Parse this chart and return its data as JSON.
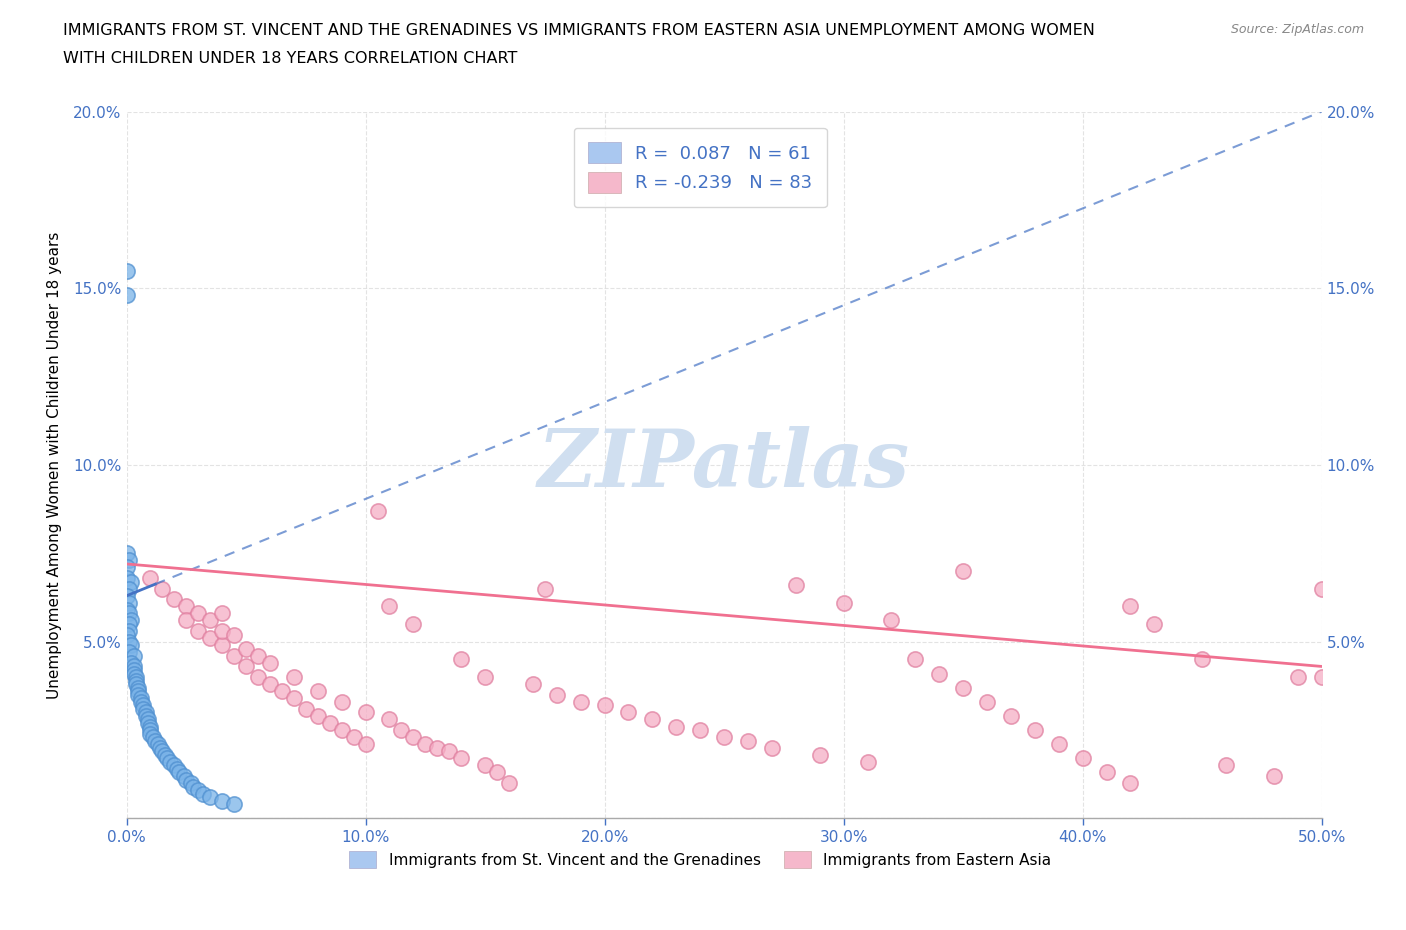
{
  "title_line1": "IMMIGRANTS FROM ST. VINCENT AND THE GRENADINES VS IMMIGRANTS FROM EASTERN ASIA UNEMPLOYMENT AMONG WOMEN",
  "title_line2": "WITH CHILDREN UNDER 18 YEARS CORRELATION CHART",
  "source": "Source: ZipAtlas.com",
  "ylabel": "Unemployment Among Women with Children Under 18 years",
  "xlim": [
    0.0,
    0.5
  ],
  "ylim": [
    0.0,
    0.2
  ],
  "xticks": [
    0.0,
    0.1,
    0.2,
    0.3,
    0.4,
    0.5
  ],
  "yticks": [
    0.0,
    0.05,
    0.1,
    0.15,
    0.2
  ],
  "legend1_label": "R =  0.087   N = 61",
  "legend2_label": "R = -0.239   N = 83",
  "legend1_color": "#aac8f0",
  "legend2_color": "#f5b8cb",
  "trendline1_color": "#4472c4",
  "trendline2_color": "#f07090",
  "scatter1_facecolor": "#7ab3e8",
  "scatter1_edgecolor": "#5090d0",
  "scatter2_facecolor": "#f5aec5",
  "scatter2_edgecolor": "#e080a0",
  "watermark": "ZIPatlas",
  "watermark_color": "#d0dff0",
  "background_color": "#ffffff",
  "grid_color": "#d8d8d8",
  "tick_color": "#4472c4",
  "label_color": "#4472c4",
  "bottom_legend1_label": "Immigrants from St. Vincent and the Grenadines",
  "bottom_legend2_label": "Immigrants from Eastern Asia",
  "trendline1_x0": 0.0,
  "trendline1_y0": 0.063,
  "trendline1_x1": 0.5,
  "trendline1_y1": 0.2,
  "trendline2_x0": 0.0,
  "trendline2_y0": 0.072,
  "trendline2_x1": 0.5,
  "trendline2_y1": 0.043,
  "sv_x": [
    0.0,
    0.0,
    0.0,
    0.001,
    0.0,
    0.0,
    0.002,
    0.001,
    0.0,
    0.001,
    0.0,
    0.001,
    0.002,
    0.001,
    0.001,
    0.0,
    0.001,
    0.002,
    0.001,
    0.003,
    0.002,
    0.003,
    0.003,
    0.003,
    0.004,
    0.004,
    0.004,
    0.005,
    0.005,
    0.005,
    0.006,
    0.006,
    0.007,
    0.007,
    0.008,
    0.008,
    0.009,
    0.009,
    0.01,
    0.01,
    0.01,
    0.011,
    0.012,
    0.013,
    0.014,
    0.015,
    0.016,
    0.017,
    0.018,
    0.02,
    0.021,
    0.022,
    0.024,
    0.025,
    0.027,
    0.028,
    0.03,
    0.032,
    0.035,
    0.04,
    0.045
  ],
  "sv_y": [
    0.155,
    0.148,
    0.075,
    0.073,
    0.071,
    0.068,
    0.067,
    0.065,
    0.063,
    0.061,
    0.059,
    0.058,
    0.056,
    0.055,
    0.053,
    0.052,
    0.05,
    0.049,
    0.047,
    0.046,
    0.044,
    0.043,
    0.042,
    0.041,
    0.04,
    0.039,
    0.038,
    0.037,
    0.036,
    0.035,
    0.034,
    0.033,
    0.032,
    0.031,
    0.03,
    0.029,
    0.028,
    0.027,
    0.026,
    0.025,
    0.024,
    0.023,
    0.022,
    0.021,
    0.02,
    0.019,
    0.018,
    0.017,
    0.016,
    0.015,
    0.014,
    0.013,
    0.012,
    0.011,
    0.01,
    0.009,
    0.008,
    0.007,
    0.006,
    0.005,
    0.004
  ],
  "ea_x": [
    0.01,
    0.015,
    0.02,
    0.025,
    0.025,
    0.03,
    0.03,
    0.035,
    0.035,
    0.04,
    0.04,
    0.04,
    0.045,
    0.045,
    0.05,
    0.05,
    0.055,
    0.055,
    0.06,
    0.06,
    0.065,
    0.07,
    0.07,
    0.075,
    0.08,
    0.08,
    0.085,
    0.09,
    0.09,
    0.095,
    0.1,
    0.1,
    0.105,
    0.11,
    0.11,
    0.115,
    0.12,
    0.12,
    0.125,
    0.13,
    0.135,
    0.14,
    0.14,
    0.15,
    0.15,
    0.155,
    0.16,
    0.17,
    0.175,
    0.18,
    0.19,
    0.2,
    0.21,
    0.22,
    0.23,
    0.24,
    0.25,
    0.26,
    0.27,
    0.28,
    0.29,
    0.3,
    0.31,
    0.32,
    0.33,
    0.34,
    0.35,
    0.36,
    0.37,
    0.38,
    0.39,
    0.4,
    0.41,
    0.42,
    0.43,
    0.45,
    0.46,
    0.48,
    0.49,
    0.5,
    0.5,
    0.42,
    0.35
  ],
  "ea_y": [
    0.068,
    0.065,
    0.062,
    0.06,
    0.056,
    0.053,
    0.058,
    0.051,
    0.056,
    0.049,
    0.053,
    0.058,
    0.046,
    0.052,
    0.043,
    0.048,
    0.04,
    0.046,
    0.038,
    0.044,
    0.036,
    0.034,
    0.04,
    0.031,
    0.029,
    0.036,
    0.027,
    0.025,
    0.033,
    0.023,
    0.021,
    0.03,
    0.087,
    0.028,
    0.06,
    0.025,
    0.023,
    0.055,
    0.021,
    0.02,
    0.019,
    0.017,
    0.045,
    0.015,
    0.04,
    0.013,
    0.01,
    0.038,
    0.065,
    0.035,
    0.033,
    0.032,
    0.03,
    0.028,
    0.026,
    0.025,
    0.023,
    0.022,
    0.02,
    0.066,
    0.018,
    0.061,
    0.016,
    0.056,
    0.045,
    0.041,
    0.037,
    0.033,
    0.029,
    0.025,
    0.021,
    0.017,
    0.013,
    0.01,
    0.055,
    0.045,
    0.015,
    0.012,
    0.04,
    0.04,
    0.065,
    0.06,
    0.07
  ]
}
